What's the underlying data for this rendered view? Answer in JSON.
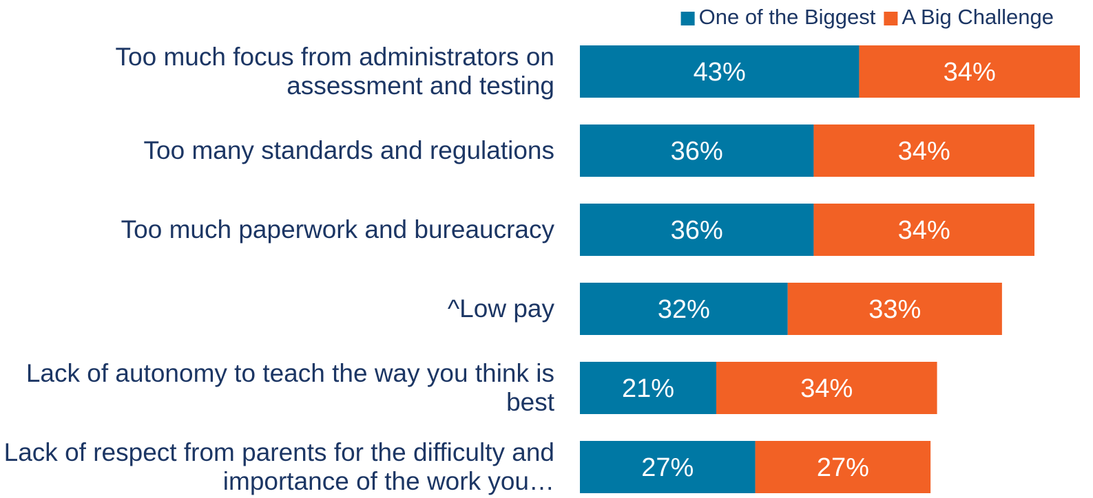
{
  "chart_data": {
    "type": "stacked-bar-horizontal",
    "categories": [
      "Too much focus from administrators on assessment and testing",
      "Too many standards and regulations",
      "Too much paperwork and bureaucracy",
      "^Low pay",
      "Lack of autonomy to teach the way you think is best",
      "Lack of respect from parents for the difficulty and importance of the work you…"
    ],
    "series": [
      {
        "name": "One of the Biggest",
        "color": "#0078a4",
        "values": [
          43,
          36,
          36,
          32,
          21,
          27
        ],
        "value_labels": [
          "43%",
          "36%",
          "36%",
          "32%",
          "21%",
          "27%"
        ]
      },
      {
        "name": "A Big Challenge",
        "color": "#f26125",
        "values": [
          34,
          34,
          34,
          33,
          34,
          27
        ],
        "value_labels": [
          "34%",
          "34%",
          "34%",
          "33%",
          "34%",
          "27%"
        ]
      }
    ],
    "xlim": [
      0,
      77
    ],
    "legend": "top-right"
  }
}
